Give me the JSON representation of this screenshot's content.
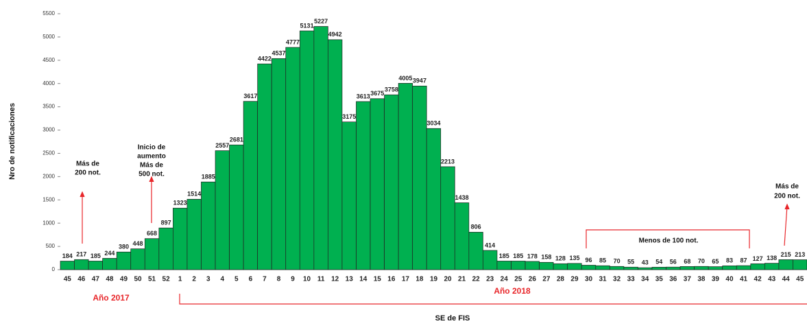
{
  "chart_data": {
    "type": "bar",
    "y_label": "Nro de notificaciones",
    "x_label": "SE de FIS",
    "categories": [
      "45",
      "46",
      "47",
      "48",
      "49",
      "50",
      "51",
      "52",
      "1",
      "2",
      "3",
      "4",
      "5",
      "6",
      "7",
      "8",
      "9",
      "10",
      "11",
      "12",
      "13",
      "14",
      "15",
      "16",
      "17",
      "18",
      "19",
      "20",
      "21",
      "22",
      "23",
      "24",
      "25",
      "26",
      "27",
      "28",
      "29",
      "30",
      "31",
      "32",
      "33",
      "34",
      "35",
      "36",
      "37",
      "38",
      "39",
      "40",
      "41",
      "42",
      "43",
      "44",
      "45"
    ],
    "values": [
      184,
      217,
      185,
      244,
      380,
      448,
      668,
      897,
      1323,
      1514,
      1885,
      2557,
      2681,
      3617,
      4422,
      4537,
      4777,
      5131,
      5227,
      4942,
      3175,
      3613,
      3675,
      3758,
      4005,
      3947,
      3034,
      2213,
      1438,
      806,
      414,
      185,
      185,
      178,
      158,
      128,
      135,
      96,
      85,
      70,
      55,
      43,
      54,
      56,
      68,
      70,
      65,
      83,
      87,
      127,
      138,
      215,
      213
    ],
    "color": "#00b050",
    "ylim": [
      0,
      5500
    ],
    "yticks": [
      0,
      500,
      1000,
      1500,
      2000,
      2500,
      3000,
      3500,
      4000,
      4500,
      5000,
      5500
    ],
    "annotations": {
      "left": [
        "Más de",
        "200 not."
      ],
      "rise": [
        "Inicio de",
        "aumento",
        "Más de",
        "500 not."
      ],
      "right": [
        "Más de",
        "200 not."
      ],
      "low": "Menos de 100 not.",
      "year1": "Año 2017",
      "year2": "Año 2018"
    }
  }
}
